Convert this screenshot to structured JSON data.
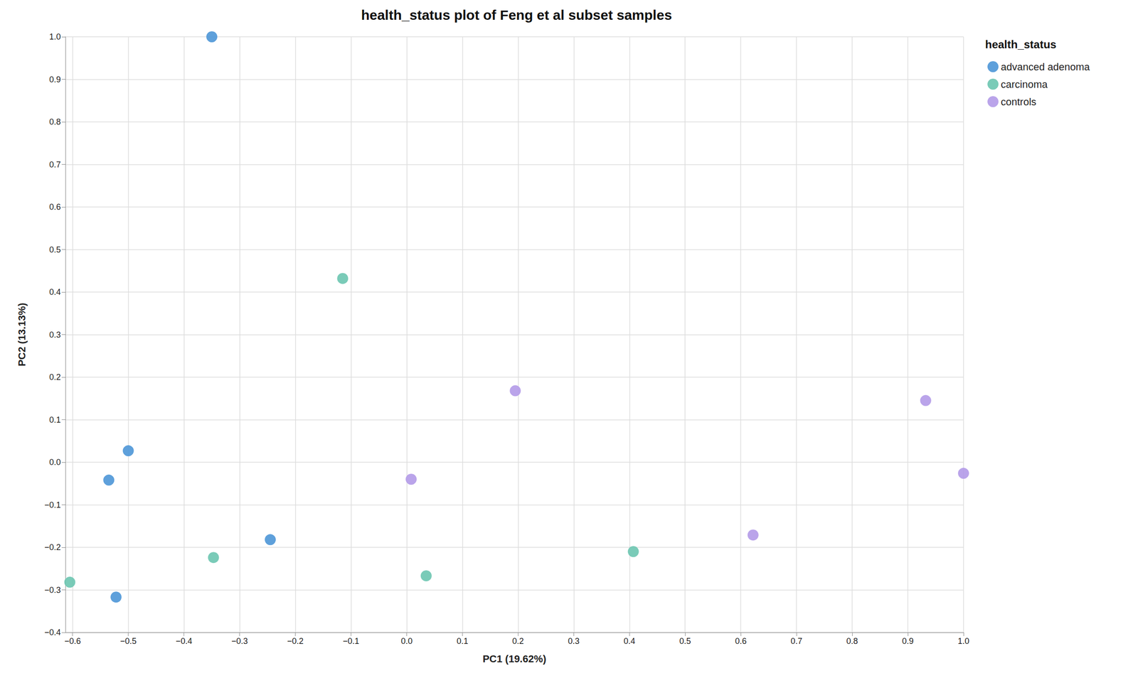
{
  "chart_data": {
    "type": "scatter",
    "title": "health_status plot of Feng et al subset samples",
    "x_label": "PC1 (19.62%)",
    "y_label": "PC2 (13.13%)",
    "legend_title": "health_status",
    "legend": "top-right",
    "grid": true,
    "marker": "circle",
    "xlim": [
      -0.613,
      1.0
    ],
    "ylim": [
      -0.4,
      1.0
    ],
    "xticks": [
      {
        "value": -0.6,
        "label": "−0.6"
      },
      {
        "value": -0.5,
        "label": "−0.5"
      },
      {
        "value": -0.4,
        "label": "−0.4"
      },
      {
        "value": -0.3,
        "label": "−0.3"
      },
      {
        "value": -0.2,
        "label": "−0.2"
      },
      {
        "value": -0.1,
        "label": "−0.1"
      },
      {
        "value": 0,
        "label": "0.0"
      },
      0.1,
      0.2,
      0.3,
      0.4,
      0.5,
      0.6,
      0.7,
      0.8,
      0.9,
      {
        "value": 1,
        "label": "1.0"
      }
    ],
    "yticks": [
      {
        "value": -0.4,
        "label": "−0.4"
      },
      {
        "value": -0.3,
        "label": "−0.3"
      },
      {
        "value": -0.2,
        "label": "−0.2"
      },
      {
        "value": -0.1,
        "label": "−0.1"
      },
      {
        "value": 0,
        "label": "0.0"
      },
      0.1,
      0.2,
      0.3,
      0.4,
      0.5,
      0.6,
      0.7,
      0.8,
      0.9,
      {
        "value": 1,
        "label": "1.0"
      }
    ],
    "series": [
      {
        "name": "advanced adenoma",
        "color": "#4c96d7",
        "x": [
          -0.35,
          -0.5,
          -0.535,
          -0.245,
          -0.522
        ],
        "values": [
          1.0,
          0.027,
          -0.042,
          -0.182,
          -0.317
        ]
      },
      {
        "name": "carcinoma",
        "color": "#6cc5b0",
        "x": [
          -0.115,
          -0.605,
          -0.347,
          0.035,
          0.407
        ],
        "values": [
          0.432,
          -0.282,
          -0.224,
          -0.267,
          -0.21
        ]
      },
      {
        "name": "controls",
        "color": "#b39ae8",
        "x": [
          0.195,
          0.008,
          0.932,
          1.0,
          0.622
        ],
        "values": [
          0.168,
          -0.04,
          0.145,
          -0.026,
          -0.171
        ]
      }
    ]
  }
}
